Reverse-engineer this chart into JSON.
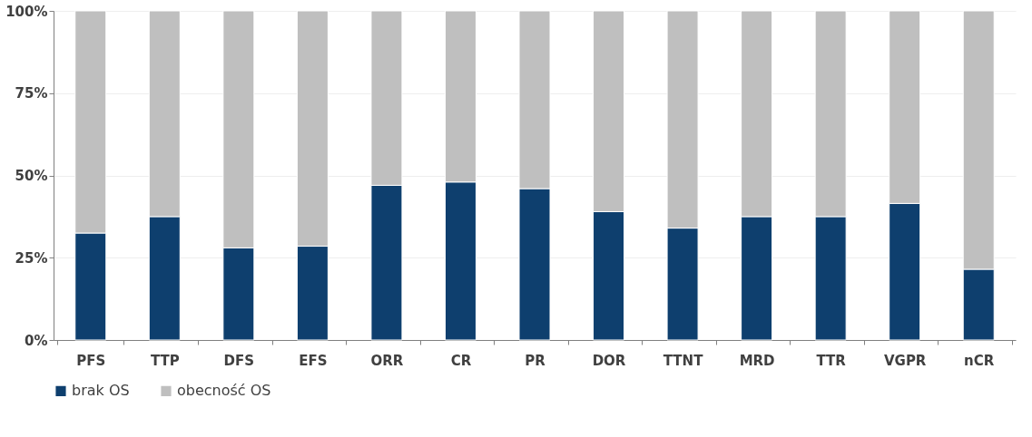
{
  "chart_data": {
    "type": "bar",
    "stacked": true,
    "categories": [
      "PFS",
      "TTP",
      "DFS",
      "EFS",
      "ORR",
      "CR",
      "PR",
      "DOR",
      "TTNT",
      "MRD",
      "TTR",
      "VGPR",
      "nCR"
    ],
    "series": [
      {
        "name": "brak OS",
        "color": "#0e3f6e",
        "values": [
          32.5,
          37.5,
          28,
          28.5,
          47,
          48,
          46,
          39,
          34,
          37.5,
          37.5,
          41.5,
          21.5
        ]
      },
      {
        "name": "obecność OS",
        "color": "#bfbfbf",
        "values": [
          67.5,
          62.5,
          72,
          71.5,
          53,
          52,
          54,
          61,
          66,
          62.5,
          62.5,
          58.5,
          78.5
        ]
      }
    ],
    "ylim": [
      0,
      100
    ],
    "yticks": [
      {
        "value": 0,
        "label": "0%"
      },
      {
        "value": 25,
        "label": "25%"
      },
      {
        "value": 50,
        "label": "50%"
      },
      {
        "value": 75,
        "label": "75%"
      },
      {
        "value": 100,
        "label": "100%"
      }
    ],
    "grid": "y",
    "legend": "bottom"
  }
}
